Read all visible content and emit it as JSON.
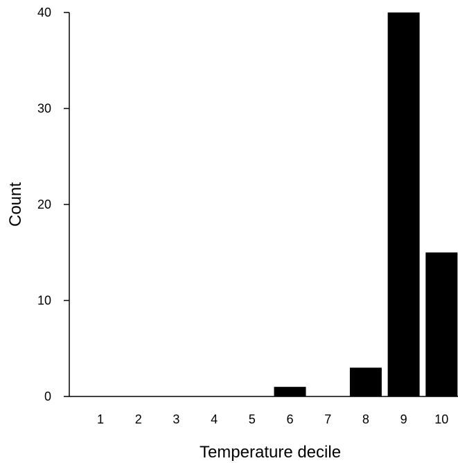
{
  "chart_data": {
    "type": "bar",
    "categories": [
      "1",
      "2",
      "3",
      "4",
      "5",
      "6",
      "7",
      "8",
      "9",
      "10"
    ],
    "values": [
      0,
      0,
      0,
      0,
      0,
      1,
      0,
      3,
      40,
      15
    ],
    "title": "",
    "xlabel": "Temperature decile",
    "ylabel": "Count",
    "ylim": [
      0,
      40
    ],
    "yticks": [
      0,
      10,
      20,
      30,
      40
    ],
    "grid": false,
    "legend": "none",
    "bar_color": "#000000"
  }
}
